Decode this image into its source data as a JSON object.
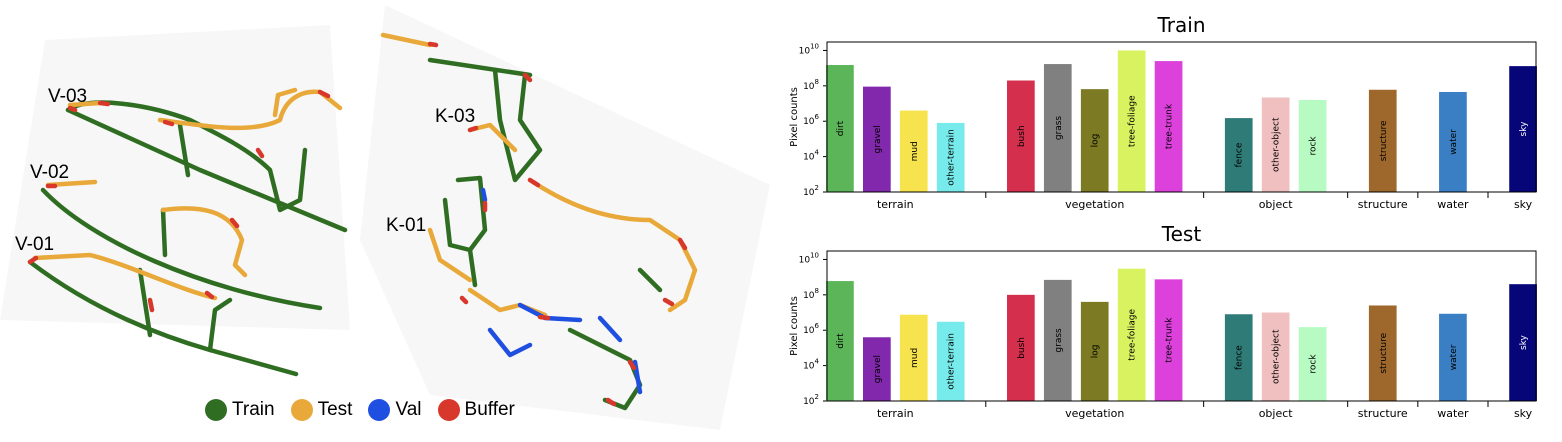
{
  "map": {
    "sequence_labels": [
      "V-03",
      "V-02",
      "V-01",
      "K-03",
      "K-01"
    ],
    "legend": [
      {
        "name": "Train",
        "color": "#2f6e22"
      },
      {
        "name": "Test",
        "color": "#e8a93a"
      },
      {
        "name": "Val",
        "color": "#1f4fe0"
      },
      {
        "name": "Buffer",
        "color": "#d8372b"
      }
    ]
  },
  "chart_data": [
    {
      "type": "bar",
      "title": "Train",
      "ylabel": "Pixel counts",
      "yscale": "log",
      "ylim": [
        100,
        30000000000
      ],
      "yticks": [
        {
          "v": 100,
          "base": "10",
          "exp": "2"
        },
        {
          "v": 10000,
          "base": "10",
          "exp": "4"
        },
        {
          "v": 1000000,
          "base": "10",
          "exp": "6"
        },
        {
          "v": 100000000,
          "base": "10",
          "exp": "8"
        },
        {
          "v": 10000000000,
          "base": "10",
          "exp": "10"
        }
      ],
      "categories": [
        "dirt",
        "gravel",
        "mud",
        "other-terrain",
        "bush",
        "grass",
        "log",
        "tree-foliage",
        "tree-trunk",
        "fence",
        "other-object",
        "rock",
        "structure",
        "water",
        "sky"
      ],
      "values": [
        1500000000,
        90000000,
        4000000,
        800000,
        200000000,
        1700000000,
        65000000,
        10000000000,
        2500000000,
        1500000,
        22000000,
        16000000,
        60000000,
        45000000,
        1300000000
      ],
      "colors": [
        "#5db55a",
        "#8128ad",
        "#f6e34d",
        "#77ebeb",
        "#d42f4c",
        "#808080",
        "#7c7a22",
        "#d9f260",
        "#dc41dc",
        "#2f7b78",
        "#f0c0c0",
        "#b7fbc3",
        "#9e672c",
        "#3a7fc4",
        "#060679"
      ],
      "groups": [
        {
          "name": "terrain",
          "span": [
            0,
            3
          ]
        },
        {
          "name": "vegetation",
          "span": [
            4,
            8
          ]
        },
        {
          "name": "object",
          "span": [
            9,
            11
          ]
        },
        {
          "name": "structure",
          "span": [
            12,
            12
          ]
        },
        {
          "name": "water",
          "span": [
            13,
            13
          ]
        },
        {
          "name": "sky",
          "span": [
            14,
            14
          ]
        }
      ]
    },
    {
      "type": "bar",
      "title": "Test",
      "ylabel": "Pixel counts",
      "yscale": "log",
      "ylim": [
        100,
        30000000000
      ],
      "yticks": [
        {
          "v": 100,
          "base": "10",
          "exp": "2"
        },
        {
          "v": 10000,
          "base": "10",
          "exp": "4"
        },
        {
          "v": 1000000,
          "base": "10",
          "exp": "6"
        },
        {
          "v": 100000000,
          "base": "10",
          "exp": "8"
        },
        {
          "v": 10000000000,
          "base": "10",
          "exp": "10"
        }
      ],
      "categories": [
        "dirt",
        "gravel",
        "mud",
        "other-terrain",
        "bush",
        "grass",
        "log",
        "tree-foliage",
        "tree-trunk",
        "fence",
        "other-object",
        "rock",
        "structure",
        "water",
        "sky"
      ],
      "values": [
        600000000,
        400000,
        7500000,
        3000000,
        100000000,
        700000000,
        40000000,
        3000000000,
        750000000,
        8000000,
        10000000,
        1500000,
        25000000,
        8500000,
        400000000
      ],
      "colors": [
        "#5db55a",
        "#8128ad",
        "#f6e34d",
        "#77ebeb",
        "#d42f4c",
        "#808080",
        "#7c7a22",
        "#d9f260",
        "#dc41dc",
        "#2f7b78",
        "#f0c0c0",
        "#b7fbc3",
        "#9e672c",
        "#3a7fc4",
        "#060679"
      ],
      "groups": [
        {
          "name": "terrain",
          "span": [
            0,
            3
          ]
        },
        {
          "name": "vegetation",
          "span": [
            4,
            8
          ]
        },
        {
          "name": "object",
          "span": [
            9,
            11
          ]
        },
        {
          "name": "structure",
          "span": [
            12,
            12
          ]
        },
        {
          "name": "water",
          "span": [
            13,
            13
          ]
        },
        {
          "name": "sky",
          "span": [
            14,
            14
          ]
        }
      ]
    }
  ]
}
